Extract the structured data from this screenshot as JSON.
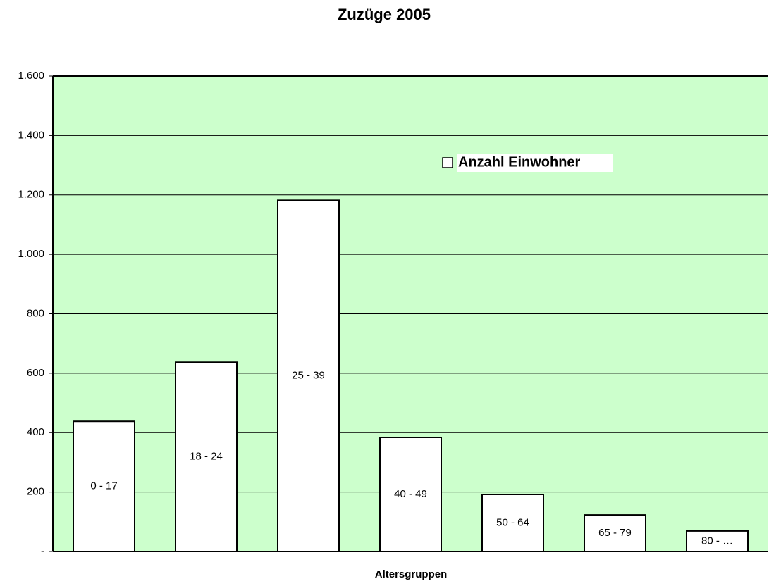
{
  "chart_data": {
    "type": "bar",
    "title": "Zuzüge 2005",
    "x_label": "Altersgruppen",
    "categories": [
      "0 - 17",
      "18 - 24",
      "25 - 39",
      "40 - 49",
      "50 - 64",
      "65 - 79",
      "80 - …"
    ],
    "series": [
      {
        "name": "Anzahl Einwohner",
        "color": "#ffffff",
        "values": [
          438,
          637,
          1182,
          384,
          192,
          123,
          69
        ]
      }
    ],
    "ylim": [
      0,
      1600
    ],
    "yticks": [
      {
        "value": 0,
        "label": "-"
      },
      200,
      400,
      600,
      800,
      {
        "value": 1000,
        "label": "1.000"
      },
      {
        "value": 1200,
        "label": "1.200"
      },
      {
        "value": 1400,
        "label": "1.400"
      },
      {
        "value": 1600,
        "label": "1.600"
      }
    ],
    "grid": true,
    "background": "#ccffcc",
    "legend": "top-right"
  }
}
